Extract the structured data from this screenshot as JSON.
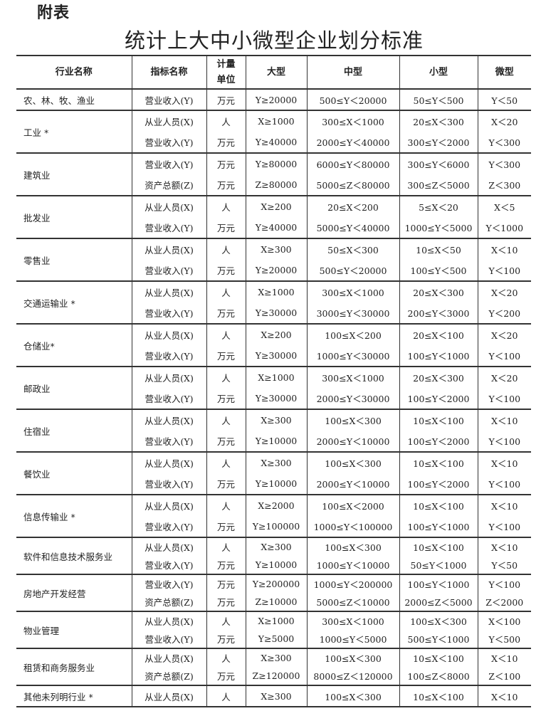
{
  "annex_label": "附表",
  "title": "统计上大中小微型企业划分标准",
  "headers": {
    "industry": "行业名称",
    "indicator": "指标名称",
    "unit_line1": "计量",
    "unit_line2": "单位",
    "large": "大型",
    "medium": "中型",
    "small": "小型",
    "micro": "微型"
  },
  "groups": [
    {
      "industry": "农、林、牧、渔业",
      "items": [
        {
          "indicator": "营业收入(Y)",
          "unit": "万元",
          "large": "Y≥20000",
          "medium": "500≤Y＜20000",
          "small": "50≤Y＜500",
          "micro": "Y＜50"
        }
      ]
    },
    {
      "industry": "工业 *",
      "items": [
        {
          "indicator": "从业人员(X)",
          "unit": "人",
          "large": "X≥1000",
          "medium": "300≤X＜1000",
          "small": "20≤X＜300",
          "micro": "X＜20"
        },
        {
          "indicator": "营业收入(Y)",
          "unit": "万元",
          "large": "Y≥40000",
          "medium": "2000≤Y＜40000",
          "small": "300≤Y＜2000",
          "micro": "Y＜300"
        }
      ]
    },
    {
      "industry": "建筑业",
      "items": [
        {
          "indicator": "营业收入(Y)",
          "unit": "万元",
          "large": "Y≥80000",
          "medium": "6000≤Y＜80000",
          "small": "300≤Y＜6000",
          "micro": "Y＜300"
        },
        {
          "indicator": "资产总额(Z)",
          "unit": "万元",
          "large": "Z≥80000",
          "medium": "5000≤Z＜80000",
          "small": "300≤Z＜5000",
          "micro": "Z＜300"
        }
      ]
    },
    {
      "industry": "批发业",
      "items": [
        {
          "indicator": "从业人员(X)",
          "unit": "人",
          "large": "X≥200",
          "medium": "20≤X＜200",
          "small": "5≤X＜20",
          "micro": "X＜5"
        },
        {
          "indicator": "营业收入(Y)",
          "unit": "万元",
          "large": "Y≥40000",
          "medium": "5000≤Y＜40000",
          "small": "1000≤Y＜5000",
          "micro": "Y＜1000"
        }
      ]
    },
    {
      "industry": "零售业",
      "items": [
        {
          "indicator": "从业人员(X)",
          "unit": "人",
          "large": "X≥300",
          "medium": "50≤X＜300",
          "small": "10≤X＜50",
          "micro": "X＜10"
        },
        {
          "indicator": "营业收入(Y)",
          "unit": "万元",
          "large": "Y≥20000",
          "medium": "500≤Y＜20000",
          "small": "100≤Y＜500",
          "micro": "Y＜100"
        }
      ]
    },
    {
      "industry": "交通运输业 *",
      "items": [
        {
          "indicator": "从业人员(X)",
          "unit": "人",
          "large": "X≥1000",
          "medium": "300≤X＜1000",
          "small": "20≤X＜300",
          "micro": "X＜20"
        },
        {
          "indicator": "营业收入(Y)",
          "unit": "万元",
          "large": "Y≥30000",
          "medium": "3000≤Y＜30000",
          "small": "200≤Y＜3000",
          "micro": "Y＜200"
        }
      ]
    },
    {
      "industry": "仓储业*",
      "items": [
        {
          "indicator": "从业人员(X)",
          "unit": "人",
          "large": "X≥200",
          "medium": "100≤X＜200",
          "small": "20≤X＜100",
          "micro": "X＜20"
        },
        {
          "indicator": "营业收入(Y)",
          "unit": "万元",
          "large": "Y≥30000",
          "medium": "1000≤Y＜30000",
          "small": "100≤Y＜1000",
          "micro": "Y＜100"
        }
      ]
    },
    {
      "industry": "邮政业",
      "items": [
        {
          "indicator": "从业人员(X)",
          "unit": "人",
          "large": "X≥1000",
          "medium": "300≤X＜1000",
          "small": "20≤X＜300",
          "micro": "X＜20"
        },
        {
          "indicator": "营业收入(Y)",
          "unit": "万元",
          "large": "Y≥30000",
          "medium": "2000≤Y＜30000",
          "small": "100≤Y＜2000",
          "micro": "Y＜100"
        }
      ]
    },
    {
      "industry": "住宿业",
      "items": [
        {
          "indicator": "从业人员(X)",
          "unit": "人",
          "large": "X≥300",
          "medium": "100≤X＜300",
          "small": "10≤X＜100",
          "micro": "X＜10"
        },
        {
          "indicator": "营业收入(Y)",
          "unit": "万元",
          "large": "Y≥10000",
          "medium": "2000≤Y＜10000",
          "small": "100≤Y＜2000",
          "micro": "Y＜100"
        }
      ]
    },
    {
      "industry": "餐饮业",
      "items": [
        {
          "indicator": "从业人员(X)",
          "unit": "人",
          "large": "X≥300",
          "medium": "100≤X＜300",
          "small": "10≤X＜100",
          "micro": "X＜10"
        },
        {
          "indicator": "营业收入(Y)",
          "unit": "万元",
          "large": "Y≥10000",
          "medium": "2000≤Y＜10000",
          "small": "100≤Y＜2000",
          "micro": "Y＜100"
        }
      ]
    },
    {
      "industry": "信息传输业 *",
      "items": [
        {
          "indicator": "从业人员(X)",
          "unit": "人",
          "large": "X≥2000",
          "medium": "100≤X＜2000",
          "small": "10≤X＜100",
          "micro": "X＜10"
        },
        {
          "indicator": "营业收入(Y)",
          "unit": "万元",
          "large": "Y≥100000",
          "medium": "1000≤Y＜100000",
          "small": "100≤Y＜1000",
          "micro": "Y＜100"
        }
      ]
    },
    {
      "industry": "软件和信息技术服务业",
      "items": [
        {
          "indicator": "从业人员(X)",
          "unit": "人",
          "large": "X≥300",
          "medium": "100≤X＜300",
          "small": "10≤X＜100",
          "micro": "X＜10"
        },
        {
          "indicator": "营业收入(Y)",
          "unit": "万元",
          "large": "Y≥10000",
          "medium": "1000≤Y＜10000",
          "small": "50≤Y＜1000",
          "micro": "Y＜50"
        }
      ]
    },
    {
      "industry": "房地产开发经营",
      "items": [
        {
          "indicator": "营业收入(Y)",
          "unit": "万元",
          "large": "Y≥200000",
          "medium": "1000≤Y＜200000",
          "small": "100≤Y＜1000",
          "micro": "Y＜100"
        },
        {
          "indicator": "资产总额(Z)",
          "unit": "万元",
          "large": "Z≥10000",
          "medium": "5000≤Z＜10000",
          "small": "2000≤Z＜5000",
          "micro": "Z＜2000"
        }
      ]
    },
    {
      "industry": "物业管理",
      "items": [
        {
          "indicator": "从业人员(X)",
          "unit": "人",
          "large": "X≥1000",
          "medium": "300≤X＜1000",
          "small": "100≤X＜300",
          "micro": "X＜100"
        },
        {
          "indicator": "营业收入(Y)",
          "unit": "万元",
          "large": "Y≥5000",
          "medium": "1000≤Y＜5000",
          "small": "500≤Y＜1000",
          "micro": "Y＜500"
        }
      ]
    },
    {
      "industry": "租赁和商务服务业",
      "items": [
        {
          "indicator": "从业人员(X)",
          "unit": "人",
          "large": "X≥300",
          "medium": "100≤X＜300",
          "small": "10≤X＜100",
          "micro": "X＜10"
        },
        {
          "indicator": "资产总额(Z)",
          "unit": "万元",
          "large": "Z≥120000",
          "medium": "8000≤Z＜120000",
          "small": "100≤Z＜8000",
          "micro": "Z＜100"
        }
      ]
    },
    {
      "industry": "其他未列明行业 *",
      "items": [
        {
          "indicator": "从业人员(X)",
          "unit": "人",
          "large": "X≥300",
          "medium": "100≤X＜300",
          "small": "10≤X＜100",
          "micro": "X＜10"
        }
      ]
    }
  ]
}
